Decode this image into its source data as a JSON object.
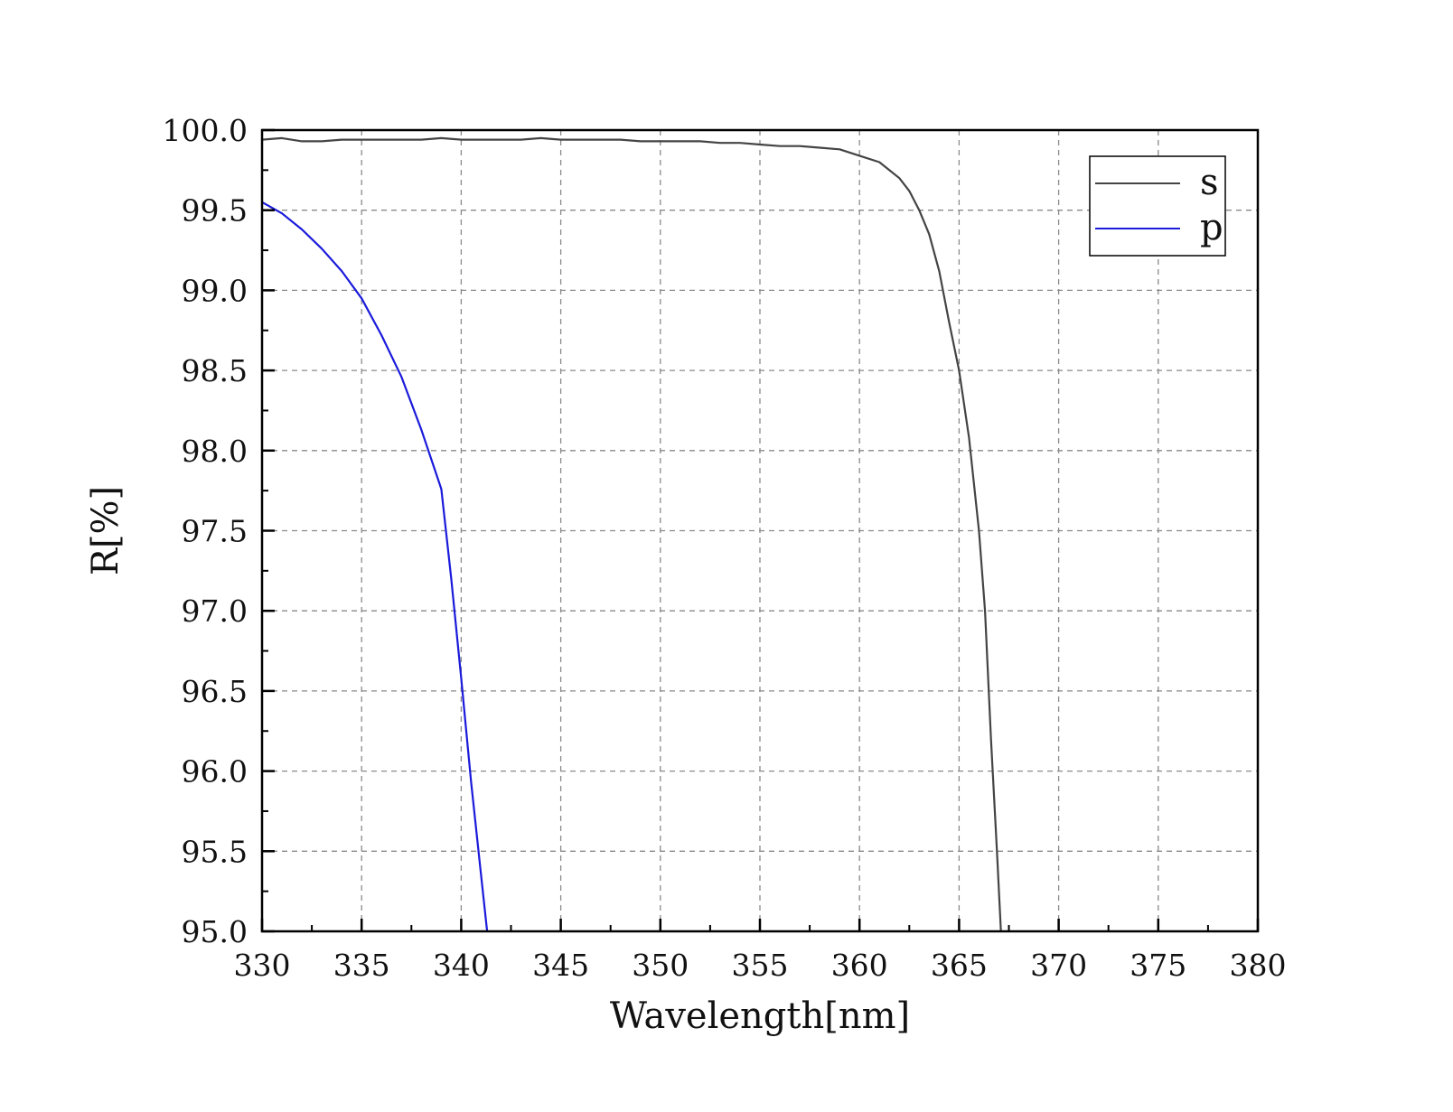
{
  "chart_data": {
    "type": "line",
    "title": "",
    "xlabel": "Wavelength[nm]",
    "ylabel": "R[%]",
    "xlim": [
      330,
      380
    ],
    "ylim": [
      95.0,
      100.0
    ],
    "x_ticks": [
      330,
      335,
      340,
      345,
      350,
      355,
      360,
      365,
      370,
      375,
      380
    ],
    "x_tick_labels": [
      "330",
      "335",
      "340",
      "345",
      "350",
      "355",
      "360",
      "365",
      "370",
      "375",
      "380"
    ],
    "y_ticks": [
      95.0,
      95.5,
      96.0,
      96.5,
      97.0,
      97.5,
      98.0,
      98.5,
      99.0,
      99.5,
      100.0
    ],
    "y_tick_labels": [
      "95.0",
      "95.5",
      "96.0",
      "96.5",
      "97.0",
      "97.5",
      "98.0",
      "98.5",
      "99.0",
      "99.5",
      "100.0"
    ],
    "grid": true,
    "legend_position": "top-right",
    "series": [
      {
        "name": "s",
        "color": "#444444",
        "x": [
          330,
          331,
          332,
          333,
          334,
          335,
          336,
          337,
          338,
          339,
          340,
          341,
          342,
          343,
          344,
          345,
          346,
          347,
          348,
          349,
          350,
          351,
          352,
          353,
          354,
          355,
          356,
          357,
          358,
          359,
          360,
          361,
          361.5,
          362,
          362.5,
          363,
          363.5,
          364,
          364.5,
          365,
          365.5,
          366,
          366.3,
          366.6,
          366.9,
          367.1
        ],
        "y": [
          99.94,
          99.95,
          99.93,
          99.93,
          99.94,
          99.94,
          99.94,
          99.94,
          99.94,
          99.95,
          99.94,
          99.94,
          99.94,
          99.94,
          99.95,
          99.94,
          99.94,
          99.94,
          99.94,
          99.93,
          99.93,
          99.93,
          99.93,
          99.92,
          99.92,
          99.91,
          99.9,
          99.9,
          99.89,
          99.88,
          99.84,
          99.8,
          99.75,
          99.7,
          99.62,
          99.5,
          99.35,
          99.12,
          98.8,
          98.5,
          98.08,
          97.5,
          97.0,
          96.2,
          95.5,
          95.0
        ]
      },
      {
        "name": "p",
        "color": "#1a1adb",
        "x": [
          330,
          331,
          332,
          333,
          334,
          335,
          336,
          337,
          338,
          339,
          339.5,
          340,
          340.5,
          341,
          341.3
        ],
        "y": [
          99.55,
          99.48,
          99.38,
          99.26,
          99.12,
          98.95,
          98.72,
          98.46,
          98.13,
          97.76,
          97.2,
          96.58,
          95.93,
          95.35,
          95.0
        ]
      }
    ]
  }
}
